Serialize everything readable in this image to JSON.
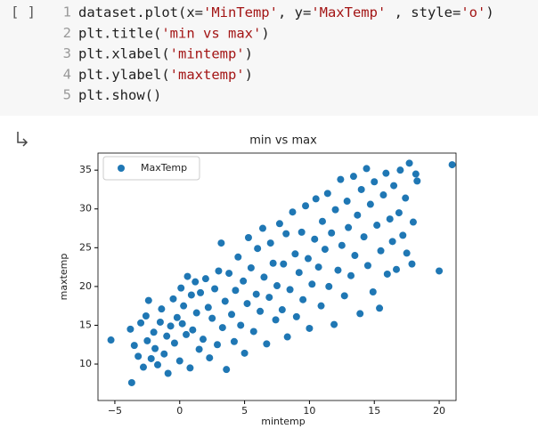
{
  "code_cell": {
    "prompt": "[ ]",
    "lines": [
      {
        "number": 1,
        "code": "dataset.plot(x='MinTemp', y='MaxTemp' , style='o')"
      },
      {
        "number": 2,
        "code": "plt.title('min vs max')"
      },
      {
        "number": 3,
        "code": "plt.xlabel('mintemp')"
      },
      {
        "number": 4,
        "code": "plt.ylabel('maxtemp')"
      },
      {
        "number": 5,
        "code": "plt.show()"
      }
    ]
  },
  "chart_data": {
    "type": "scatter",
    "title": "min vs max",
    "x_label": "mintemp",
    "y_label": "maxtemp",
    "legend": "upper left",
    "grid": false,
    "xlim": [
      -6.3,
      21.3
    ],
    "ylim": [
      5.3,
      37.2
    ],
    "xticks": [
      {
        "value": -5,
        "label": "−5"
      },
      0,
      5,
      10,
      15,
      20
    ],
    "yticks": [
      10,
      15,
      20,
      25,
      30,
      35
    ],
    "x": [
      -5.3,
      -3.7,
      -3.8,
      -3.5,
      -3.2,
      -3.0,
      -2.8,
      -2.6,
      -2.5,
      -2.4,
      -2.2,
      -2.0,
      -1.9,
      -1.7,
      -1.5,
      -1.4,
      -1.2,
      -1.0,
      -0.9,
      -0.7,
      -0.5,
      -0.4,
      -0.2,
      0.0,
      0.1,
      0.2,
      0.3,
      0.5,
      0.6,
      0.8,
      0.9,
      1.0,
      1.2,
      1.3,
      1.5,
      1.6,
      1.8,
      2.0,
      2.2,
      2.3,
      2.5,
      2.7,
      2.9,
      3.0,
      3.2,
      3.3,
      3.5,
      3.6,
      3.8,
      4.0,
      4.2,
      4.3,
      4.5,
      4.7,
      4.9,
      5.0,
      5.2,
      5.3,
      5.5,
      5.7,
      5.9,
      6.0,
      6.2,
      6.4,
      6.5,
      6.7,
      6.9,
      7.0,
      7.2,
      7.4,
      7.5,
      7.7,
      7.9,
      8.0,
      8.2,
      8.3,
      8.5,
      8.7,
      8.9,
      9.0,
      9.2,
      9.4,
      9.5,
      9.7,
      9.9,
      10.0,
      10.2,
      10.4,
      10.5,
      10.7,
      10.9,
      11.0,
      11.2,
      11.4,
      11.5,
      11.7,
      11.9,
      12.0,
      12.2,
      12.4,
      12.5,
      12.7,
      12.9,
      13.0,
      13.2,
      13.4,
      13.5,
      13.7,
      13.9,
      14.0,
      14.2,
      14.4,
      14.5,
      14.7,
      14.9,
      15.0,
      15.2,
      15.4,
      15.5,
      15.7,
      15.9,
      16.0,
      16.2,
      16.4,
      16.5,
      16.7,
      16.9,
      17.0,
      17.2,
      17.4,
      17.5,
      17.7,
      17.9,
      18.0,
      18.2,
      18.3,
      20.0,
      21.0
    ],
    "series": [
      {
        "name": "MaxTemp",
        "color": "#1f77b4",
        "values": [
          13.1,
          7.6,
          14.5,
          12.4,
          11.0,
          15.3,
          9.6,
          16.2,
          13.0,
          18.2,
          10.7,
          14.1,
          12.0,
          9.9,
          15.4,
          17.1,
          11.3,
          13.6,
          8.8,
          14.9,
          18.4,
          12.7,
          16.0,
          10.4,
          19.8,
          15.2,
          17.5,
          13.8,
          21.3,
          9.5,
          18.9,
          14.4,
          20.6,
          16.6,
          11.9,
          19.2,
          13.2,
          21.0,
          17.3,
          10.8,
          15.9,
          19.7,
          12.5,
          22.0,
          25.6,
          14.7,
          18.1,
          9.3,
          21.7,
          16.4,
          12.9,
          19.5,
          23.8,
          15.0,
          20.7,
          11.4,
          17.8,
          26.3,
          22.4,
          14.2,
          19.0,
          24.9,
          16.8,
          27.5,
          21.2,
          12.6,
          18.6,
          25.6,
          23.0,
          15.7,
          20.1,
          28.1,
          17.0,
          22.9,
          26.8,
          13.5,
          19.6,
          29.6,
          24.2,
          16.1,
          21.8,
          27.0,
          18.3,
          30.4,
          23.6,
          14.6,
          20.3,
          26.1,
          31.3,
          22.5,
          17.5,
          28.4,
          24.8,
          32.0,
          20.0,
          26.9,
          15.1,
          29.9,
          22.1,
          33.8,
          25.3,
          18.8,
          31.0,
          27.6,
          21.4,
          34.2,
          24.0,
          29.2,
          16.5,
          32.5,
          26.4,
          35.2,
          22.7,
          30.6,
          19.3,
          33.5,
          27.9,
          17.2,
          24.6,
          31.8,
          34.6,
          21.6,
          28.7,
          25.8,
          33.0,
          22.2,
          29.5,
          35.0,
          26.6,
          31.4,
          24.3,
          35.9,
          22.9,
          28.3,
          34.5,
          33.6,
          22.0,
          35.7
        ]
      }
    ]
  }
}
